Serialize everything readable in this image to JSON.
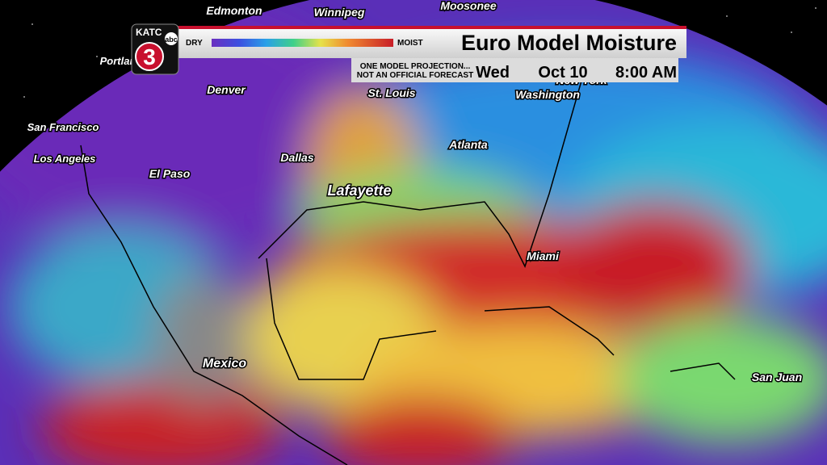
{
  "station": {
    "call_sign": "KATC",
    "network": "abc",
    "channel": "3"
  },
  "legend": {
    "low": "DRY",
    "high": "MOIST"
  },
  "header": {
    "title": "Euro Model Moisture",
    "disclaimer": [
      "ONE MODEL PROJECTION...",
      "NOT AN OFFICIAL FORECAST"
    ],
    "day": "Wed",
    "date": "Oct 10",
    "time": "8:00 AM"
  },
  "cities": [
    "Edmonton",
    "Winnipeg",
    "Moosonee",
    "Portland",
    "Denver",
    "San Francisco",
    "Los Angeles",
    "El Paso",
    "Dallas",
    "St. Louis",
    "New York",
    "Washington",
    "Atlanta",
    "Lafayette",
    "Miami",
    "Mexico",
    "San Juan"
  ]
}
